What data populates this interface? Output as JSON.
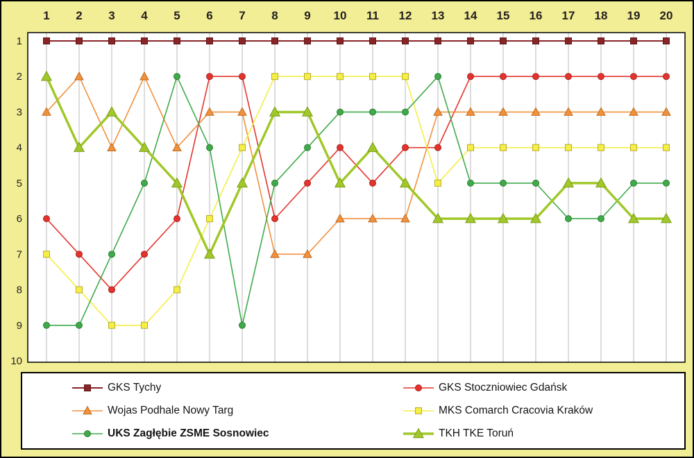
{
  "chart_data": {
    "type": "line",
    "title": "",
    "xlabel": "",
    "ylabel": "",
    "x": [
      1,
      2,
      3,
      4,
      5,
      6,
      7,
      8,
      9,
      10,
      11,
      12,
      13,
      14,
      15,
      16,
      17,
      18,
      19,
      20
    ],
    "y_positions": [
      1,
      2,
      3,
      4,
      5,
      6,
      7,
      8,
      9,
      10
    ],
    "ylim": [
      1,
      10
    ],
    "y_inverted": true,
    "grid": "vertical-only",
    "legend_position": "bottom",
    "series": [
      {
        "name": "GKS Tychy",
        "color": "#892427",
        "edge": "#5d1716",
        "marker": "square",
        "marker_size": 9,
        "line_width": 2,
        "bold": false,
        "values": [
          1,
          1,
          1,
          1,
          1,
          1,
          1,
          1,
          1,
          1,
          1,
          1,
          1,
          1,
          1,
          1,
          1,
          1,
          1,
          1
        ]
      },
      {
        "name": "GKS Stoczniowiec Gdańsk",
        "color": "#e5332c",
        "edge": "#a42420",
        "marker": "circle",
        "marker_size": 9,
        "line_width": 1.6,
        "bold": false,
        "values": [
          6,
          7,
          8,
          7,
          6,
          2,
          2,
          6,
          5,
          4,
          5,
          4,
          4,
          2,
          2,
          2,
          2,
          2,
          2,
          2
        ]
      },
      {
        "name": "Wojas Podhale Nowy Targ",
        "color": "#f0913e",
        "edge": "#c06a1e",
        "marker": "triangle",
        "marker_size": 10,
        "line_width": 1.6,
        "bold": false,
        "values": [
          3,
          2,
          4,
          2,
          4,
          3,
          3,
          7,
          7,
          6,
          6,
          6,
          3,
          3,
          3,
          3,
          3,
          3,
          3,
          3
        ]
      },
      {
        "name": "MKS Comarch Cracovia Kraków",
        "color": "#f5ee45",
        "edge": "#b7ad2e",
        "marker": "square",
        "marker_size": 9,
        "line_width": 1.6,
        "bold": false,
        "values": [
          7,
          8,
          9,
          9,
          8,
          6,
          4,
          2,
          2,
          2,
          2,
          2,
          5,
          4,
          4,
          4,
          4,
          4,
          4,
          4
        ]
      },
      {
        "name": "UKS Zagłębie ZSME Sosnowiec",
        "color": "#3faa4a",
        "edge": "#2e7d33",
        "marker": "circle",
        "marker_size": 9,
        "line_width": 1.6,
        "bold": true,
        "values": [
          9,
          9,
          7,
          5,
          2,
          4,
          9,
          5,
          4,
          3,
          3,
          3,
          2,
          5,
          5,
          5,
          6,
          6,
          5,
          5
        ]
      },
      {
        "name": "TKH TKE Toruń",
        "color": "#a0c828",
        "edge": "#7e9c1c",
        "marker": "triangle",
        "marker_size": 12,
        "line_width": 3.5,
        "bold": false,
        "values": [
          2,
          4,
          3,
          4,
          5,
          7,
          5,
          3,
          3,
          5,
          4,
          5,
          6,
          6,
          6,
          6,
          5,
          5,
          6,
          6
        ]
      }
    ]
  },
  "colors": {
    "background": "#f1ee95",
    "plot_bg": "#ffffff",
    "grid": "#b8b8b8",
    "border": "#000000",
    "axis_text": "#262020"
  }
}
